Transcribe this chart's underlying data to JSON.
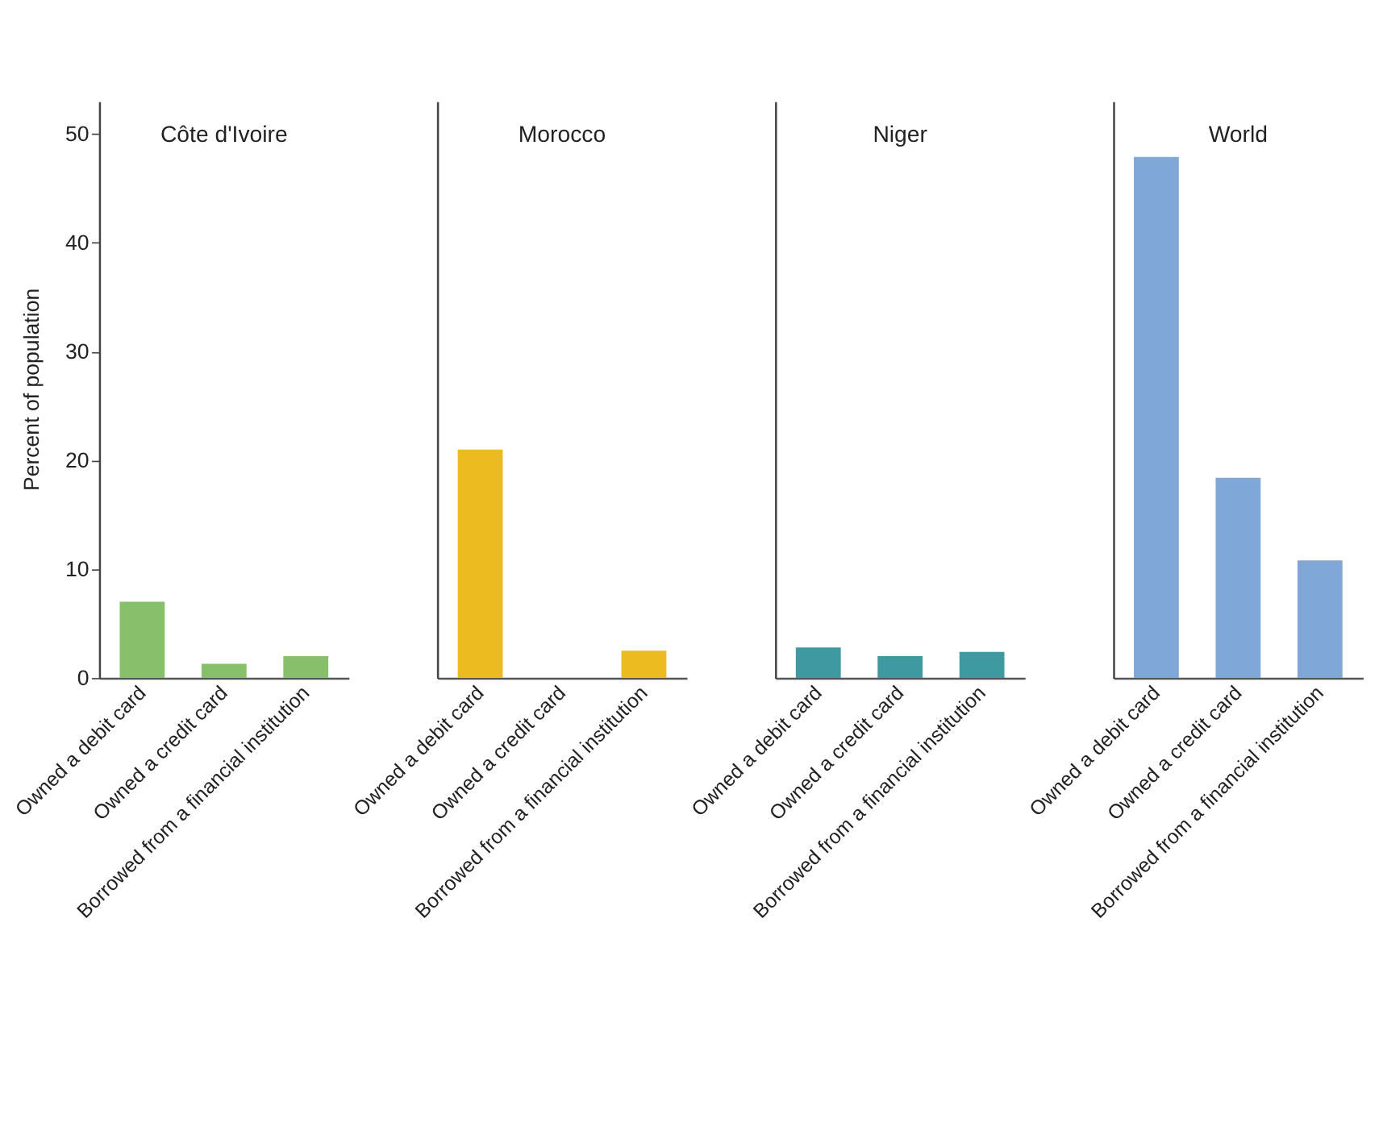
{
  "chart_data": [
    {
      "type": "bar",
      "title": "Côte d'Ivoire",
      "ylabel": "Percent of population",
      "categories": [
        "Owned a debit card",
        "Owned a credit card",
        "Borrowed from a financial institution"
      ],
      "values": [
        7.0,
        1.3,
        2.0
      ],
      "color": "#88bf6a",
      "ylim": [
        0,
        53
      ],
      "yticks": [
        0,
        10,
        20,
        30,
        40,
        50
      ],
      "grid": false
    },
    {
      "type": "bar",
      "title": "Morocco",
      "categories": [
        "Owned a debit card",
        "Owned a credit card",
        "Borrowed from a financial institution"
      ],
      "values": [
        21.0,
        null,
        2.5
      ],
      "color": "#ecbb1f",
      "ylim": [
        0,
        53
      ],
      "yticks": [
        0,
        10,
        20,
        30,
        40,
        50
      ],
      "tick_labels": "x",
      "grid": false
    },
    {
      "type": "bar",
      "title": "Niger",
      "categories": [
        "Owned a debit card",
        "Owned a credit card",
        "Borrowed from a financial institution"
      ],
      "values": [
        2.8,
        2.0,
        2.4
      ],
      "color": "#3e9aa0",
      "ylim": [
        0,
        53
      ],
      "yticks": [
        0,
        10,
        20,
        30,
        40,
        50
      ],
      "tick_labels": "x",
      "grid": false
    },
    {
      "type": "bar",
      "title": "World",
      "categories": [
        "Owned a debit card",
        "Owned a credit card",
        "Borrowed from a financial institution"
      ],
      "values": [
        47.9,
        18.4,
        10.8
      ],
      "color": "#7fa7d8",
      "ylim": [
        0,
        53
      ],
      "yticks": [
        0,
        10,
        20,
        30,
        40,
        50
      ],
      "tick_labels": "x",
      "grid": false
    }
  ]
}
